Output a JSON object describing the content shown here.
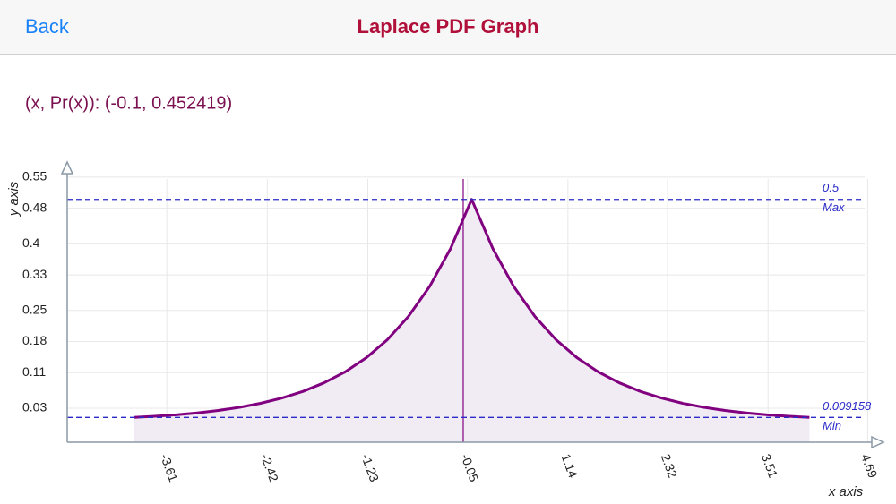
{
  "header": {
    "back": "Back",
    "title": "Laplace PDF Graph"
  },
  "readout": "(x, Pr(x)): (-0.1, 0.452419)",
  "chart_data": {
    "type": "line",
    "x_label": "x axis",
    "y_label": "y axis",
    "x": [
      -4,
      -3.75,
      -3.5,
      -3.25,
      -3,
      -2.75,
      -2.5,
      -2.25,
      -2,
      -1.75,
      -1.5,
      -1.25,
      -1,
      -0.75,
      -0.5,
      -0.25,
      0,
      0.25,
      0.5,
      0.75,
      1,
      1.25,
      1.5,
      1.75,
      2,
      2.25,
      2.5,
      2.75,
      3,
      3.25,
      3.5,
      3.75,
      4
    ],
    "values": [
      0.0092,
      0.0118,
      0.0151,
      0.0194,
      0.0249,
      0.032,
      0.041,
      0.0527,
      0.0677,
      0.0869,
      0.1116,
      0.1433,
      0.1839,
      0.2362,
      0.3033,
      0.3894,
      0.5,
      0.3894,
      0.3033,
      0.2362,
      0.1839,
      0.1433,
      0.1116,
      0.0869,
      0.0677,
      0.0527,
      0.041,
      0.032,
      0.0249,
      0.0194,
      0.0151,
      0.0118,
      0.0092
    ],
    "color": "#800080",
    "fill": "#f1ecf4",
    "xlim": [
      -4.79,
      4.76
    ],
    "xticks": [
      -3.61,
      -2.42,
      -1.23,
      -0.05,
      1.14,
      2.32,
      3.51,
      4.69
    ],
    "ylim": [
      -0.0466,
      0.576
    ],
    "yticks": [
      0.03,
      0.11,
      0.18,
      0.25,
      0.33,
      0.4,
      0.48,
      0.55
    ],
    "grid": true,
    "cursor_x": -0.1,
    "reference_lines": [
      {
        "value": 0.5,
        "label": "Max"
      },
      {
        "value": 0.009158,
        "label": "Min"
      }
    ]
  }
}
